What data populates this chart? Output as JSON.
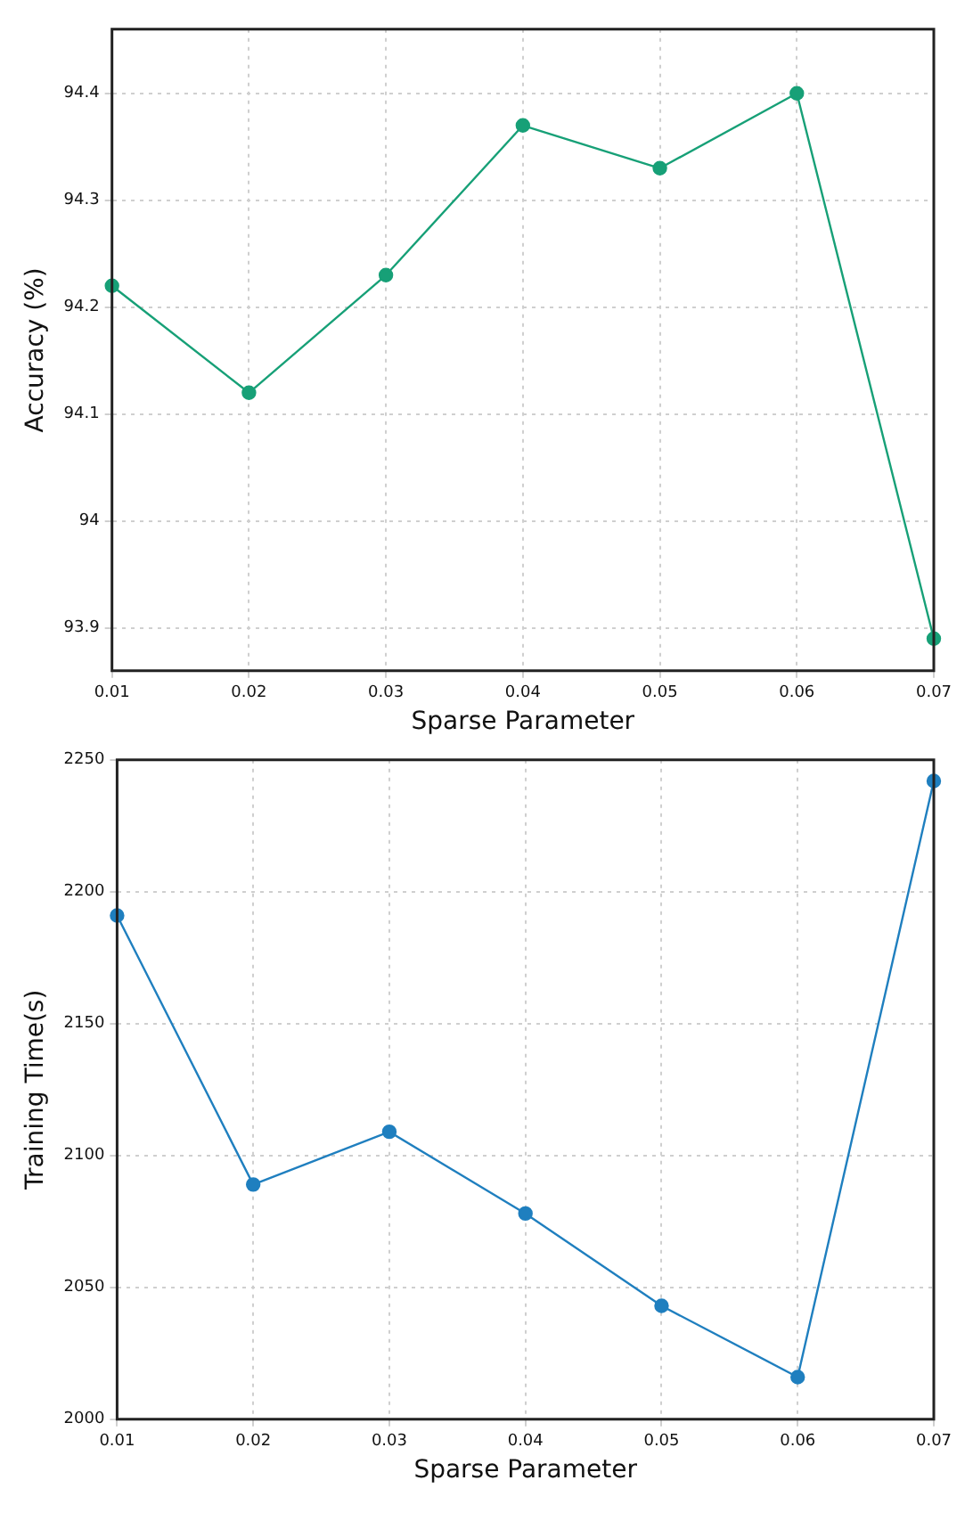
{
  "chart_data": [
    {
      "type": "line",
      "xlabel": "Sparse Parameter",
      "ylabel": "Accuracy (%)",
      "x": [
        0.01,
        0.02,
        0.03,
        0.04,
        0.05,
        0.06,
        0.07
      ],
      "series": [
        {
          "color": "#17a077",
          "values": [
            94.22,
            94.12,
            94.23,
            94.37,
            94.33,
            94.4,
            93.89
          ]
        }
      ],
      "xlim": [
        0.01,
        0.07
      ],
      "xticks": [
        0.01,
        0.02,
        0.03,
        0.04,
        0.05,
        0.06,
        0.07
      ],
      "ylim": [
        93.86,
        94.46
      ],
      "yticks": [
        93.9,
        94,
        94.1,
        94.2,
        94.3,
        94.4
      ],
      "grid": true,
      "legend": false,
      "marker": "circle",
      "line_style": "solid"
    },
    {
      "type": "line",
      "xlabel": "Sparse Parameter",
      "ylabel": "Training Time(s)",
      "x": [
        0.01,
        0.02,
        0.03,
        0.04,
        0.05,
        0.06,
        0.07
      ],
      "series": [
        {
          "color": "#1f7fbf",
          "values": [
            2191,
            2089,
            2109,
            2078,
            2043,
            2016,
            2242
          ]
        }
      ],
      "xlim": [
        0.01,
        0.07
      ],
      "xticks": [
        0.01,
        0.02,
        0.03,
        0.04,
        0.05,
        0.06,
        0.07
      ],
      "ylim": [
        2000,
        2250
      ],
      "yticks": [
        2000,
        2050,
        2100,
        2150,
        2200,
        2250
      ],
      "grid": true,
      "legend": false,
      "marker": "circle",
      "line_style": "solid"
    }
  ]
}
